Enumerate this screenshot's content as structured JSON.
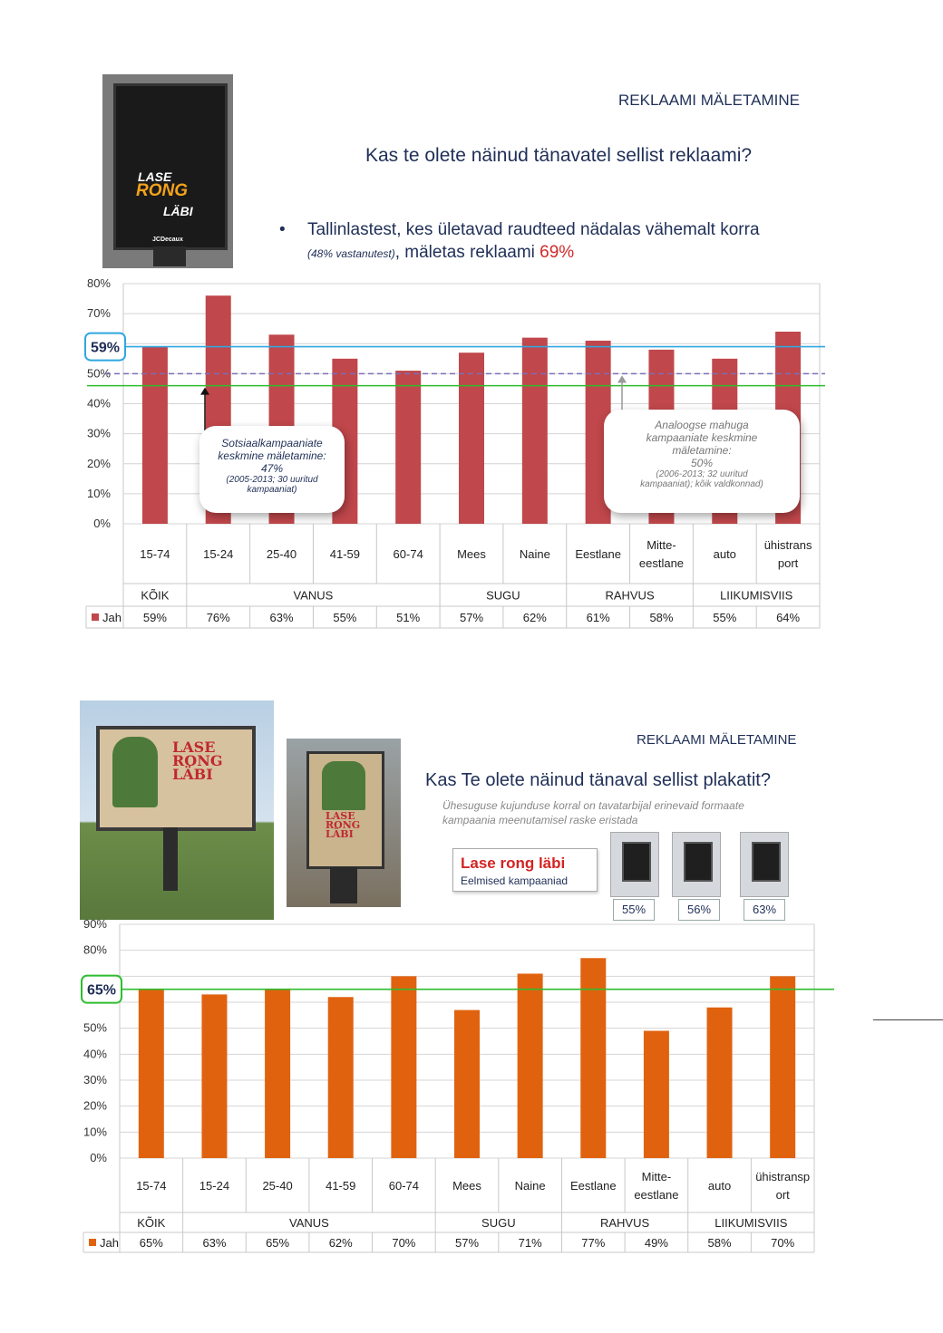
{
  "slide1": {
    "section_label": "REKLAAMI MÄLETAMINE",
    "question": "Kas te olete näinud tänavatel sellist reklaami?",
    "bullet_main": "Tallinlastest, kes ületavad raudteed nädalas vähemalt korra",
    "bullet_note": "(48% vastanutest)",
    "bullet_tail": ", mäletas reklaami ",
    "bullet_value": "69%",
    "poster": {
      "line1": "LASE",
      "line2": "RONG",
      "line3": "LÄBI",
      "brand": "JCDecaux"
    },
    "callout_left": {
      "line1": "Sotsiaalkampaaniate",
      "line2": "keskmine mäletamine:",
      "line3": "47%",
      "line4": "(2005-2013; 30 uuritud",
      "line5": "kampaaniat)"
    },
    "callout_right": {
      "line1": "Analoogse mahuga",
      "line2": "kampaaniate keskmine",
      "line3": "mäletamine:",
      "line4": "50%",
      "line5": "(2006-2013; 32 uuritud",
      "line6": "kampaaniat); kõik  valdkonnad)"
    }
  },
  "slide2": {
    "section_label": "REKLAAMI MÄLETAMINE",
    "question": "Kas Te olete näinud tänaval sellist plakatit?",
    "subnote_line1": "Ühesuguse kujunduse korral on tavatarbijal erinevaid formaate",
    "subnote_line2": "kampaania meenutamisel raske eristada",
    "legend_title": "Lase rong läbi",
    "legend_sub": "Eelmised kampaaniad",
    "thumb_values": [
      "55%",
      "56%",
      "63%"
    ],
    "billboard": {
      "line1": "LASE",
      "line2": "RONG",
      "line3": "LÄBI"
    },
    "poster": {
      "line1": "LASE",
      "line2": "RONG",
      "line3": "LÄBI"
    }
  },
  "chart_data": [
    {
      "type": "bar",
      "categories": [
        "15-74",
        "15-24",
        "25-40",
        "41-59",
        "60-74",
        "Mees",
        "Naine",
        "Eestlane",
        "Mitte-eestlane",
        "auto",
        "ühistransport"
      ],
      "category_lines": [
        [
          "15-74"
        ],
        [
          "15-24"
        ],
        [
          "25-40"
        ],
        [
          "41-59"
        ],
        [
          "60-74"
        ],
        [
          "Mees"
        ],
        [
          "Naine"
        ],
        [
          "Eestlane"
        ],
        [
          "Mitte-",
          "eestlane"
        ],
        [
          "auto"
        ],
        [
          "ühistrans",
          "port"
        ]
      ],
      "groups": [
        {
          "label": "KÕIK",
          "span": 1
        },
        {
          "label": "VANUS",
          "span": 4
        },
        {
          "label": "SUGU",
          "span": 2
        },
        {
          "label": "RAHVUS",
          "span": 2
        },
        {
          "label": "LIIKUMISVIIS",
          "span": 2
        }
      ],
      "series": [
        {
          "name": "Jah",
          "values": [
            59,
            76,
            63,
            55,
            51,
            57,
            62,
            61,
            58,
            55,
            64
          ],
          "labels": [
            "59%",
            "76%",
            "63%",
            "55%",
            "51%",
            "57%",
            "62%",
            "61%",
            "58%",
            "55%",
            "64%"
          ]
        }
      ],
      "ylim": [
        0,
        80
      ],
      "yticks": [
        "0%",
        "10%",
        "20%",
        "30%",
        "40%",
        "50%",
        "60%",
        "70%",
        "80%"
      ],
      "highlight_label": "59%",
      "reference_lines": [
        {
          "value": 59,
          "color": "#2fa7e0",
          "style": "solid"
        },
        {
          "value": 50,
          "color": "#7b6fb8",
          "style": "dashed"
        },
        {
          "value": 46,
          "color": "#2ebd2e",
          "style": "solid"
        }
      ],
      "bar_color": "#c0474b",
      "grid": true
    },
    {
      "type": "bar",
      "categories": [
        "15-74",
        "15-24",
        "25-40",
        "41-59",
        "60-74",
        "Mees",
        "Naine",
        "Eestlane",
        "Mitte-eestlane",
        "auto",
        "ühistransport"
      ],
      "category_lines": [
        [
          "15-74"
        ],
        [
          "15-24"
        ],
        [
          "25-40"
        ],
        [
          "41-59"
        ],
        [
          "60-74"
        ],
        [
          "Mees"
        ],
        [
          "Naine"
        ],
        [
          "Eestlane"
        ],
        [
          "Mitte-",
          "eestlane"
        ],
        [
          "auto"
        ],
        [
          "ühistransp",
          "ort"
        ]
      ],
      "groups": [
        {
          "label": "KÕIK",
          "span": 1
        },
        {
          "label": "VANUS",
          "span": 4
        },
        {
          "label": "SUGU",
          "span": 2
        },
        {
          "label": "RAHVUS",
          "span": 2
        },
        {
          "label": "LIIKUMISVIIS",
          "span": 2
        }
      ],
      "series": [
        {
          "name": "Jah",
          "values": [
            65,
            63,
            65,
            62,
            70,
            57,
            71,
            77,
            49,
            58,
            70
          ],
          "labels": [
            "65%",
            "63%",
            "65%",
            "62%",
            "70%",
            "57%",
            "71%",
            "77%",
            "49%",
            "58%",
            "70%"
          ]
        }
      ],
      "ylim": [
        0,
        90
      ],
      "yticks": [
        "0%",
        "10%",
        "20%",
        "30%",
        "40%",
        "50%",
        "",
        "",
        "80%",
        "90%"
      ],
      "highlight_label": "65%",
      "reference_lines": [
        {
          "value": 65,
          "color": "#2ebd2e",
          "style": "solid"
        }
      ],
      "bar_color": "#e0620f",
      "grid": true
    }
  ]
}
